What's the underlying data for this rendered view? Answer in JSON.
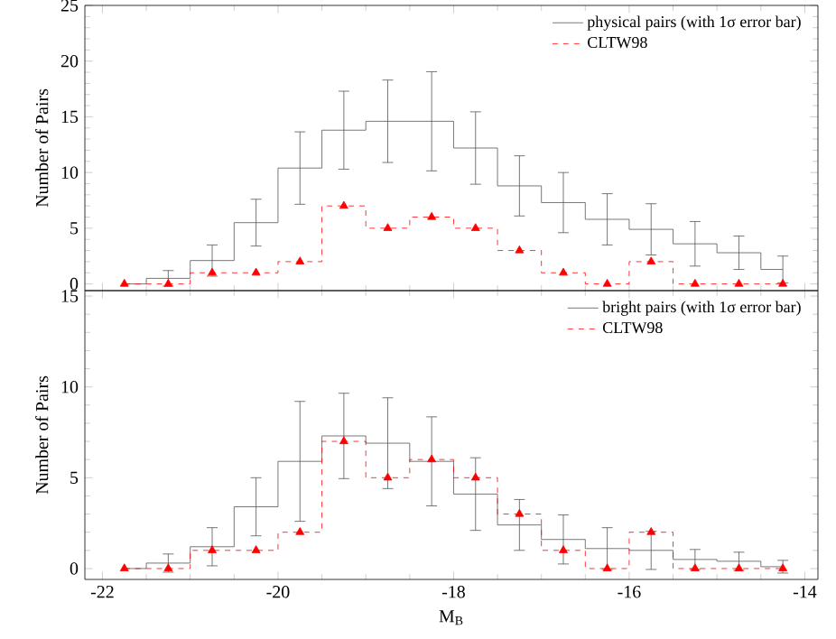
{
  "chart_data": [
    {
      "type": "step",
      "ylabel": "Number of Pairs",
      "x": [
        -21.75,
        -21.25,
        -20.75,
        -20.25,
        -19.75,
        -19.25,
        -18.75,
        -18.25,
        -17.75,
        -17.25,
        -16.75,
        -16.25,
        -15.75,
        -15.25,
        -14.75,
        -14.25
      ],
      "xlim": [
        -22.2,
        -13.85
      ],
      "ylim": [
        -0.6,
        25
      ],
      "xticks": [
        -22,
        -20,
        -18,
        -16,
        -14
      ],
      "yticks": [
        0,
        5,
        10,
        15,
        20,
        25
      ],
      "tick_labels": "y",
      "legend": "top right",
      "series": [
        {
          "name": "physical pairs (with 1σ error bar)",
          "color": "#555555",
          "line_style": "solid",
          "values": [
            0,
            0.5,
            2.1,
            5.5,
            10.4,
            13.8,
            14.6,
            14.6,
            12.2,
            8.8,
            7.3,
            5.8,
            4.9,
            3.6,
            2.8,
            1.3
          ],
          "errors": [
            null,
            0.7,
            1.4,
            2.1,
            3.25,
            3.5,
            3.7,
            4.45,
            3.25,
            2.7,
            2.7,
            2.3,
            2.3,
            2.0,
            1.5,
            1.2
          ]
        },
        {
          "name": "CLTW98",
          "color": "#ff0000",
          "line_style": "dashed",
          "marker": "triangle",
          "values": [
            0,
            0,
            1,
            1,
            2,
            7,
            5,
            6,
            5,
            3,
            1,
            0,
            2,
            0,
            0,
            0
          ]
        }
      ]
    },
    {
      "type": "step",
      "xlabel": "M$_{B}$",
      "ylabel": "Number of Pairs",
      "x": [
        -21.75,
        -21.25,
        -20.75,
        -20.25,
        -19.75,
        -19.25,
        -18.75,
        -18.25,
        -17.75,
        -17.25,
        -16.75,
        -16.25,
        -15.75,
        -15.25,
        -14.75,
        -14.25
      ],
      "xlim": [
        -22.2,
        -13.85
      ],
      "ylim": [
        -0.6,
        15.3
      ],
      "xticks": [
        -22,
        -20,
        -18,
        -16,
        -14
      ],
      "yticks": [
        0,
        5,
        10,
        15
      ],
      "legend": "top right",
      "series": [
        {
          "name": "bright pairs (with 1σ error bar)",
          "color": "#555555",
          "line_style": "solid",
          "values": [
            0,
            0.3,
            1.2,
            3.4,
            5.9,
            7.3,
            6.9,
            5.9,
            4.1,
            2.4,
            1.6,
            1.1,
            1.0,
            0.5,
            0.4,
            0.1
          ],
          "errors": [
            null,
            0.5,
            1.05,
            1.6,
            3.3,
            2.35,
            2.5,
            2.45,
            2.0,
            1.4,
            1.35,
            1.15,
            1.05,
            0.55,
            0.5,
            0.35
          ]
        },
        {
          "name": "CLTW98",
          "color": "#ff0000",
          "line_style": "dashed",
          "marker": "triangle",
          "values": [
            0,
            0,
            1,
            1,
            2,
            7,
            5,
            6,
            5,
            3,
            1,
            0,
            2,
            0,
            0,
            0
          ]
        }
      ]
    }
  ]
}
